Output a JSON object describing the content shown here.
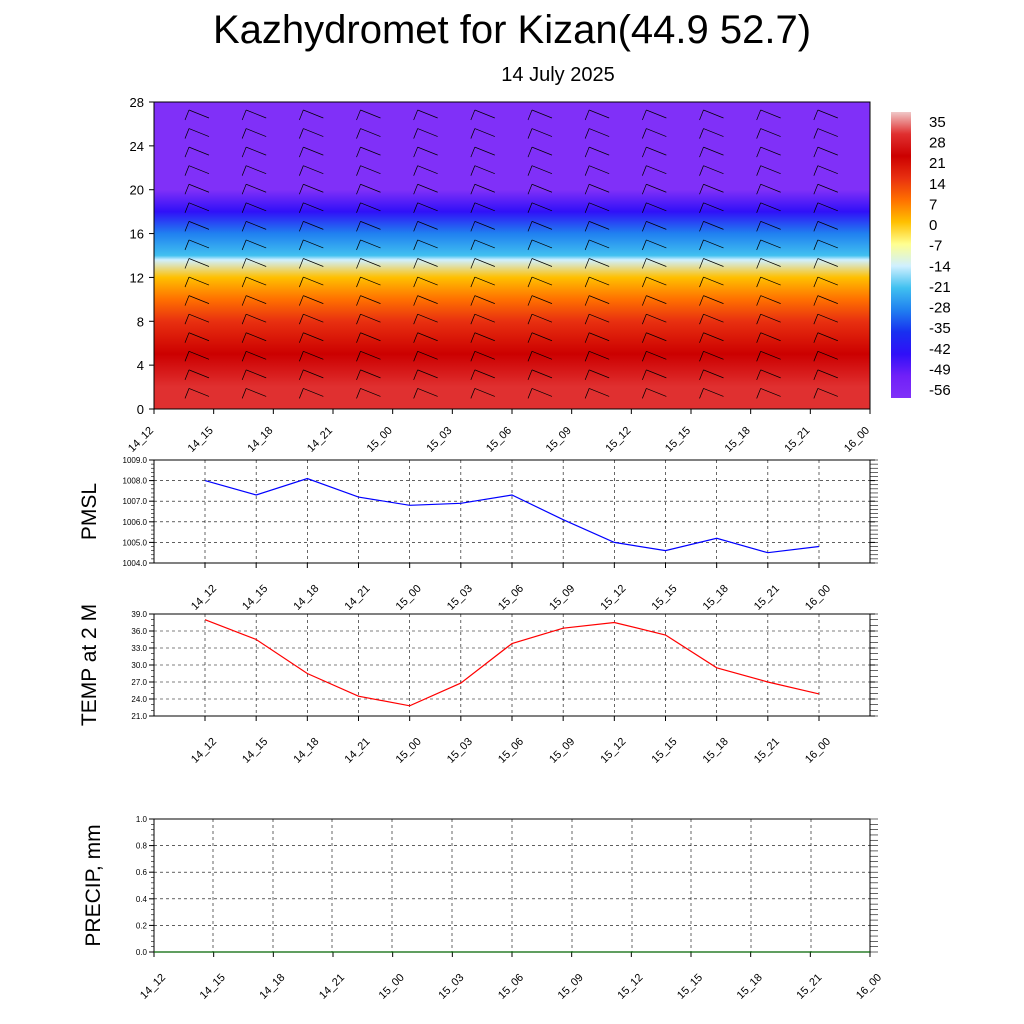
{
  "title": "Kazhydromet for Kizan(44.9 52.7)",
  "subtitle": "14 July 2025",
  "colors": {
    "pmsl_line": "#0000ff",
    "temp_line": "#ff0000",
    "precip_line": "#006400",
    "grid": "#000000"
  },
  "chart_data": [
    {
      "type": "heatmap",
      "title": "",
      "x": [
        "14_12",
        "14_15",
        "14_18",
        "14_21",
        "15_00",
        "15_03",
        "15_06",
        "15_09",
        "15_12",
        "15_15",
        "15_18",
        "15_21",
        "16_00"
      ],
      "yticks": [
        0,
        4,
        8,
        12,
        16,
        20,
        24,
        28
      ],
      "ylim": [
        0,
        28
      ],
      "colorbar": {
        "labels": [
          "35",
          "28",
          "21",
          "14",
          "7",
          "0",
          "-7",
          "-14",
          "-21",
          "-28",
          "-35",
          "-42",
          "-49",
          "-56"
        ],
        "stops": [
          "#f0c8c8",
          "#e03030",
          "#cc0000",
          "#e83010",
          "#ff7000",
          "#ffc000",
          "#ffff90",
          "#d0f0ff",
          "#40c0f0",
          "#2080f0",
          "#1830f0",
          "#3010f8",
          "#7020f8",
          "#8030f8"
        ]
      },
      "bands": [
        {
          "level": 0,
          "value": 33
        },
        {
          "level": 2,
          "value": 28
        },
        {
          "level": 5,
          "value": 22
        },
        {
          "level": 8,
          "value": 15
        },
        {
          "level": 10,
          "value": 8
        },
        {
          "level": 12,
          "value": 0
        },
        {
          "level": 13.6,
          "value": -8
        },
        {
          "level": 14,
          "value": -16
        },
        {
          "level": 16,
          "value": -28
        },
        {
          "level": 18,
          "value": -38
        },
        {
          "level": 20,
          "value": -50
        },
        {
          "level": 22,
          "value": -58
        },
        {
          "level": 24,
          "value": -52
        },
        {
          "level": 28,
          "value": -56
        }
      ],
      "grid": false
    },
    {
      "type": "line",
      "ylabel": "PMSL",
      "x": [
        "14_12",
        "14_15",
        "14_18",
        "14_21",
        "15_00",
        "15_03",
        "15_06",
        "15_09",
        "15_12",
        "15_15",
        "15_18",
        "15_21",
        "16_00"
      ],
      "yticklabels": [
        "1004.0",
        "1005.0",
        "1006.0",
        "1007.0",
        "1008.0",
        "1009.0"
      ],
      "ylim": [
        1004.0,
        1009.0
      ],
      "series": [
        {
          "values": [
            1008.0,
            1007.3,
            1008.1,
            1007.2,
            1006.8,
            1006.9,
            1007.3,
            1006.1,
            1005.0,
            1004.6,
            1005.2,
            1004.5,
            1004.8
          ]
        }
      ],
      "grid": true
    },
    {
      "type": "line",
      "ylabel": "TEMP at 2 M",
      "x": [
        "14_12",
        "14_15",
        "14_18",
        "14_21",
        "15_00",
        "15_03",
        "15_06",
        "15_09",
        "15_12",
        "15_15",
        "15_18",
        "15_21",
        "16_00"
      ],
      "yticklabels": [
        "21.0",
        "24.0",
        "27.0",
        "30.0",
        "33.0",
        "36.0",
        "39.0"
      ],
      "ylim": [
        21.0,
        39.0
      ],
      "series": [
        {
          "values": [
            38.0,
            34.5,
            28.5,
            24.5,
            22.8,
            26.8,
            33.8,
            36.5,
            37.5,
            35.3,
            29.5,
            27.0,
            24.9
          ]
        }
      ],
      "grid": true
    },
    {
      "type": "line",
      "ylabel": "PRECIP, mm",
      "x": [
        "14_12",
        "14_15",
        "14_18",
        "14_21",
        "15_00",
        "15_03",
        "15_06",
        "15_09",
        "15_12",
        "15_15",
        "15_18",
        "15_21",
        "16_00"
      ],
      "yticklabels": [
        "0.0",
        "0.2",
        "0.4",
        "0.6",
        "0.8",
        "1.0"
      ],
      "ylim": [
        0.0,
        1.0
      ],
      "series": [
        {
          "values": [
            0,
            0,
            0,
            0,
            0,
            0,
            0,
            0,
            0,
            0,
            0,
            0,
            0
          ]
        }
      ],
      "grid": true
    }
  ]
}
